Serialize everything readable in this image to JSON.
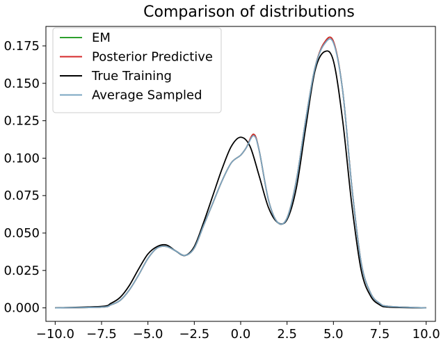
{
  "chart_data": {
    "type": "line",
    "title": "Comparison of distributions",
    "xlabel": "",
    "ylabel": "",
    "xlim": [
      -10.5,
      10.5
    ],
    "ylim": [
      -0.009,
      0.188
    ],
    "xticks": [
      -10.0,
      -7.5,
      -5.0,
      -2.5,
      0.0,
      2.5,
      5.0,
      7.5,
      10.0
    ],
    "xtick_labels": [
      "−10.0",
      "−7.5",
      "−5.0",
      "−2.5",
      "0.0",
      "2.5",
      "5.0",
      "7.5",
      "10.0"
    ],
    "yticks": [
      0.0,
      0.025,
      0.05,
      0.075,
      0.1,
      0.125,
      0.15,
      0.175
    ],
    "ytick_labels": [
      "0.000",
      "0.025",
      "0.050",
      "0.075",
      "0.100",
      "0.125",
      "0.150",
      "0.175"
    ],
    "grid": false,
    "legend_position": "top-left",
    "series": [
      {
        "name": "EM",
        "color": "#2ca02c",
        "x": [
          -10,
          -7.5,
          -7,
          -6.5,
          -6,
          -5.5,
          -5,
          -4.5,
          -4,
          -3.5,
          -3,
          -2.5,
          -2,
          -1.5,
          -1,
          -0.5,
          0,
          0.3,
          0.7,
          1,
          1.5,
          2,
          2.5,
          3,
          3.5,
          4,
          4.5,
          5,
          5.5,
          6,
          6.5,
          7,
          7.5,
          8,
          10
        ],
        "y": [
          0.0,
          0.0005,
          0.002,
          0.005,
          0.012,
          0.022,
          0.033,
          0.04,
          0.041,
          0.038,
          0.035,
          0.04,
          0.055,
          0.07,
          0.085,
          0.097,
          0.102,
          0.107,
          0.116,
          0.105,
          0.072,
          0.057,
          0.06,
          0.085,
          0.125,
          0.16,
          0.177,
          0.178,
          0.145,
          0.08,
          0.03,
          0.01,
          0.003,
          0.001,
          0.0
        ]
      },
      {
        "name": "Posterior Predictive",
        "color": "#d62728",
        "x": [
          -10,
          -7.5,
          -7,
          -6.5,
          -6,
          -5.5,
          -5,
          -4.5,
          -4,
          -3.5,
          -3,
          -2.5,
          -2,
          -1.5,
          -1,
          -0.5,
          0,
          0.3,
          0.7,
          1,
          1.5,
          2,
          2.5,
          3,
          3.5,
          4,
          4.5,
          5,
          5.5,
          6,
          6.5,
          7,
          7.5,
          8,
          10
        ],
        "y": [
          0.0,
          0.0005,
          0.002,
          0.005,
          0.012,
          0.022,
          0.033,
          0.04,
          0.041,
          0.038,
          0.035,
          0.04,
          0.055,
          0.07,
          0.085,
          0.097,
          0.102,
          0.107,
          0.116,
          0.105,
          0.072,
          0.057,
          0.06,
          0.085,
          0.125,
          0.16,
          0.177,
          0.178,
          0.145,
          0.08,
          0.03,
          0.01,
          0.003,
          0.001,
          0.0
        ]
      },
      {
        "name": "True Training",
        "color": "#000000",
        "x": [
          -10,
          -7.5,
          -7,
          -6.5,
          -6,
          -5.5,
          -5,
          -4.5,
          -4,
          -3.5,
          -3,
          -2.5,
          -2,
          -1.5,
          -1,
          -0.5,
          0,
          0.5,
          1,
          1.5,
          2,
          2.5,
          3,
          3.5,
          4,
          4.5,
          5,
          5.5,
          6,
          6.5,
          7,
          7.5,
          8,
          10
        ],
        "y": [
          0.0,
          0.001,
          0.003,
          0.007,
          0.015,
          0.026,
          0.036,
          0.041,
          0.042,
          0.038,
          0.035,
          0.041,
          0.057,
          0.075,
          0.093,
          0.108,
          0.114,
          0.108,
          0.088,
          0.067,
          0.057,
          0.059,
          0.08,
          0.12,
          0.158,
          0.171,
          0.165,
          0.125,
          0.068,
          0.025,
          0.008,
          0.002,
          0.0005,
          0.0
        ]
      },
      {
        "name": "Average Sampled",
        "color": "#7aa6c2",
        "x": [
          -10,
          -7.5,
          -7,
          -6.5,
          -6,
          -5.5,
          -5,
          -4.5,
          -4,
          -3.5,
          -3,
          -2.5,
          -2,
          -1.5,
          -1,
          -0.5,
          0,
          0.3,
          0.7,
          1,
          1.5,
          2,
          2.5,
          3,
          3.5,
          4,
          4.5,
          5,
          5.5,
          6,
          6.5,
          7,
          7.5,
          8,
          10
        ],
        "y": [
          0.0,
          0.0005,
          0.002,
          0.005,
          0.012,
          0.022,
          0.033,
          0.04,
          0.041,
          0.038,
          0.035,
          0.04,
          0.055,
          0.07,
          0.085,
          0.097,
          0.102,
          0.107,
          0.115,
          0.105,
          0.072,
          0.057,
          0.06,
          0.085,
          0.125,
          0.16,
          0.176,
          0.177,
          0.145,
          0.08,
          0.03,
          0.01,
          0.003,
          0.001,
          0.0
        ]
      }
    ]
  }
}
